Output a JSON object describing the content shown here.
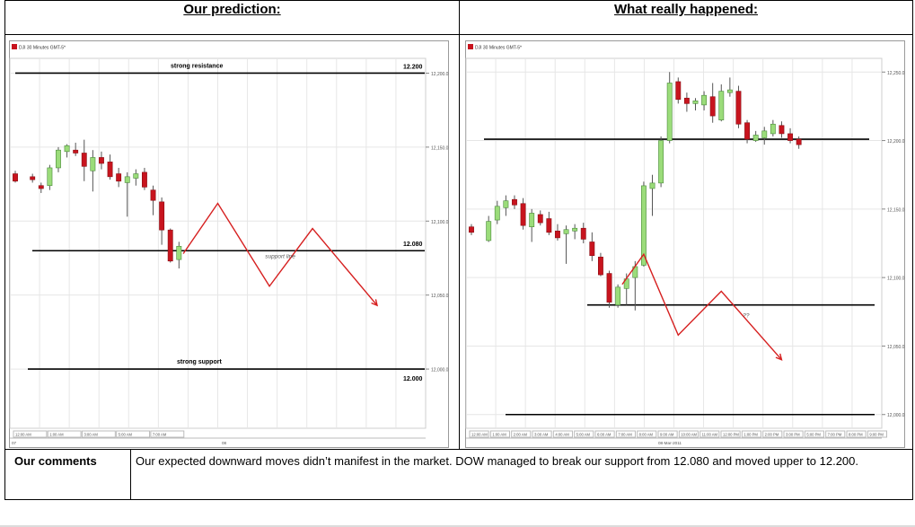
{
  "headers": {
    "left": "Our prediction:",
    "right": "What really happened:"
  },
  "comments": {
    "label": "Our comments",
    "text": "Our expected downward moves didn’t manifest in the market. DOW managed to break our support from 12.080 and moved upper to 12.200."
  },
  "chart_data": [
    {
      "type": "candlestick",
      "title": "DJI 30 Minutes GMT-5*",
      "colors": {
        "up": "#9bdc7a",
        "down": "#c8141e",
        "wick": "#555555",
        "prediction": "#d62020"
      },
      "ylim": [
        11960,
        12210
      ],
      "xlim": [
        0,
        47
      ],
      "y_ticks": [
        "12,200.0",
        "12,150.0",
        "12,100.0",
        "12,050.0",
        "12,000.0"
      ],
      "x_ticks": [
        "12:00 AM",
        "1:00 AM",
        "3:00 AM",
        "5:00 AM",
        "7:00 AM"
      ],
      "x_extra": [
        "07",
        "08"
      ],
      "candles": [
        {
          "x": 0,
          "o": 12132,
          "h": 12134,
          "l": 12126,
          "c": 12127
        },
        {
          "x": 2,
          "o": 12130,
          "h": 12132,
          "l": 12126,
          "c": 12128
        },
        {
          "x": 3,
          "o": 12124,
          "h": 12126,
          "l": 12119,
          "c": 12122
        },
        {
          "x": 4,
          "o": 12124,
          "h": 12138,
          "l": 12121,
          "c": 12136
        },
        {
          "x": 5,
          "o": 12136,
          "h": 12150,
          "l": 12133,
          "c": 12148
        },
        {
          "x": 6,
          "o": 12147,
          "h": 12152,
          "l": 12143,
          "c": 12151
        },
        {
          "x": 7,
          "o": 12148,
          "h": 12153,
          "l": 12144,
          "c": 12146
        },
        {
          "x": 8,
          "o": 12146,
          "h": 12155,
          "l": 12127,
          "c": 12137
        },
        {
          "x": 9,
          "o": 12134,
          "h": 12148,
          "l": 12120,
          "c": 12143
        },
        {
          "x": 10,
          "o": 12143,
          "h": 12147,
          "l": 12135,
          "c": 12139
        },
        {
          "x": 11,
          "o": 12140,
          "h": 12145,
          "l": 12128,
          "c": 12130
        },
        {
          "x": 12,
          "o": 12132,
          "h": 12136,
          "l": 12123,
          "c": 12127
        },
        {
          "x": 13,
          "o": 12126,
          "h": 12133,
          "l": 12103,
          "c": 12130
        },
        {
          "x": 14,
          "o": 12129,
          "h": 12135,
          "l": 12124,
          "c": 12132
        },
        {
          "x": 15,
          "o": 12133,
          "h": 12136,
          "l": 12121,
          "c": 12123
        },
        {
          "x": 16,
          "o": 12121,
          "h": 12124,
          "l": 12104,
          "c": 12114
        },
        {
          "x": 17,
          "o": 12113,
          "h": 12116,
          "l": 12084,
          "c": 12094
        },
        {
          "x": 18,
          "o": 12094,
          "h": 12095,
          "l": 12072,
          "c": 12073
        },
        {
          "x": 19,
          "o": 12074,
          "h": 12086,
          "l": 12068,
          "c": 12083
        }
      ],
      "levels": [
        {
          "label": "strong resistance",
          "value_label": "12.200",
          "y": 12200
        },
        {
          "label": "",
          "value_label": "12.080",
          "y": 12080
        },
        {
          "label": "strong support",
          "value_label": "12.000",
          "y": 12000
        }
      ],
      "annotations": [
        {
          "text": "support line",
          "x": 29,
          "y": 12075
        }
      ],
      "prediction_path": [
        [
          19.5,
          12078
        ],
        [
          23.5,
          12112
        ],
        [
          29.5,
          12056
        ],
        [
          34.5,
          12095
        ],
        [
          42,
          12043
        ]
      ]
    },
    {
      "type": "candlestick",
      "title": "DJI 30 Minutes GMT-5*",
      "colors": {
        "up": "#9bdc7a",
        "down": "#c8141e",
        "wick": "#555555",
        "prediction": "#d62020"
      },
      "ylim": [
        11990,
        12260
      ],
      "xlim": [
        0,
        47
      ],
      "y_ticks": [
        "12,250.0",
        "12,200.0",
        "12,150.0",
        "12,100.0",
        "12,050.0",
        "12,000.0"
      ],
      "x_ticks": [
        "12:00 AM",
        "1:00 AM",
        "2:00 AM",
        "3:00 AM",
        "4:00 AM",
        "5:00 AM",
        "6:00 AM",
        "7:00 AM",
        "8:00 AM",
        "9:00 AM",
        "10:00 AM",
        "11:00 AM",
        "12:00 PM",
        "1:00 PM",
        "2:00 PM",
        "3:00 PM",
        "5:00 PM",
        "7:00 PM",
        "8:00 PM",
        "9:00 PM"
      ],
      "x_extra": [
        "08-Mar-2011"
      ],
      "candles": [
        {
          "x": 0,
          "o": 12137,
          "h": 12139,
          "l": 12131,
          "c": 12133
        },
        {
          "x": 2,
          "o": 12127,
          "h": 12145,
          "l": 12126,
          "c": 12141
        },
        {
          "x": 3,
          "o": 12142,
          "h": 12156,
          "l": 12139,
          "c": 12152
        },
        {
          "x": 4,
          "o": 12151,
          "h": 12160,
          "l": 12145,
          "c": 12156
        },
        {
          "x": 5,
          "o": 12157,
          "h": 12160,
          "l": 12150,
          "c": 12153
        },
        {
          "x": 6,
          "o": 12154,
          "h": 12158,
          "l": 12135,
          "c": 12138
        },
        {
          "x": 7,
          "o": 12137,
          "h": 12150,
          "l": 12126,
          "c": 12147
        },
        {
          "x": 8,
          "o": 12146,
          "h": 12149,
          "l": 12138,
          "c": 12140
        },
        {
          "x": 9,
          "o": 12143,
          "h": 12148,
          "l": 12131,
          "c": 12133
        },
        {
          "x": 10,
          "o": 12134,
          "h": 12139,
          "l": 12127,
          "c": 12129
        },
        {
          "x": 11,
          "o": 12132,
          "h": 12138,
          "l": 12110,
          "c": 12135
        },
        {
          "x": 12,
          "o": 12134,
          "h": 12139,
          "l": 12128,
          "c": 12136
        },
        {
          "x": 13,
          "o": 12136,
          "h": 12140,
          "l": 12125,
          "c": 12128
        },
        {
          "x": 14,
          "o": 12126,
          "h": 12133,
          "l": 12112,
          "c": 12116
        },
        {
          "x": 15,
          "o": 12115,
          "h": 12118,
          "l": 12101,
          "c": 12102
        },
        {
          "x": 16,
          "o": 12103,
          "h": 12105,
          "l": 12078,
          "c": 12082
        },
        {
          "x": 17,
          "o": 12080,
          "h": 12095,
          "l": 12078,
          "c": 12093
        },
        {
          "x": 18,
          "o": 12092,
          "h": 12103,
          "l": 12080,
          "c": 12099
        },
        {
          "x": 19,
          "o": 12100,
          "h": 12112,
          "l": 12076,
          "c": 12108
        },
        {
          "x": 20,
          "o": 12109,
          "h": 12170,
          "l": 12108,
          "c": 12167
        },
        {
          "x": 21,
          "o": 12165,
          "h": 12175,
          "l": 12145,
          "c": 12169
        },
        {
          "x": 22,
          "o": 12169,
          "h": 12203,
          "l": 12166,
          "c": 12200
        },
        {
          "x": 23,
          "o": 12200,
          "h": 12250,
          "l": 12198,
          "c": 12242
        },
        {
          "x": 24,
          "o": 12243,
          "h": 12246,
          "l": 12227,
          "c": 12230
        },
        {
          "x": 25,
          "o": 12231,
          "h": 12235,
          "l": 12221,
          "c": 12227
        },
        {
          "x": 26,
          "o": 12227,
          "h": 12231,
          "l": 12222,
          "c": 12229
        },
        {
          "x": 27,
          "o": 12226,
          "h": 12236,
          "l": 12222,
          "c": 12233
        },
        {
          "x": 28,
          "o": 12232,
          "h": 12242,
          "l": 12213,
          "c": 12218
        },
        {
          "x": 29,
          "o": 12215,
          "h": 12241,
          "l": 12214,
          "c": 12236
        },
        {
          "x": 30,
          "o": 12235,
          "h": 12246,
          "l": 12232,
          "c": 12237
        },
        {
          "x": 31,
          "o": 12236,
          "h": 12240,
          "l": 12209,
          "c": 12212
        },
        {
          "x": 32,
          "o": 12213,
          "h": 12215,
          "l": 12198,
          "c": 12201
        },
        {
          "x": 33,
          "o": 12200,
          "h": 12207,
          "l": 12199,
          "c": 12204
        },
        {
          "x": 34,
          "o": 12202,
          "h": 12210,
          "l": 12197,
          "c": 12207
        },
        {
          "x": 35,
          "o": 12205,
          "h": 12215,
          "l": 12203,
          "c": 12212
        },
        {
          "x": 36,
          "o": 12211,
          "h": 12214,
          "l": 12202,
          "c": 12205
        },
        {
          "x": 37,
          "o": 12205,
          "h": 12209,
          "l": 12198,
          "c": 12200
        },
        {
          "x": 38,
          "o": 12201,
          "h": 12203,
          "l": 12194,
          "c": 12197
        }
      ],
      "levels": [
        {
          "label": "",
          "value_label": "",
          "y": 12201
        },
        {
          "label": "",
          "value_label": "",
          "y": 12080
        },
        {
          "label": "",
          "value_label": "",
          "y": 12000
        }
      ],
      "annotations": [
        {
          "text": "??",
          "x": 31.5,
          "y": 12071
        }
      ],
      "prediction_path": [
        [
          17.5,
          12095
        ],
        [
          20,
          12117
        ],
        [
          24,
          12058
        ],
        [
          29,
          12090
        ],
        [
          36,
          12040
        ]
      ]
    }
  ]
}
